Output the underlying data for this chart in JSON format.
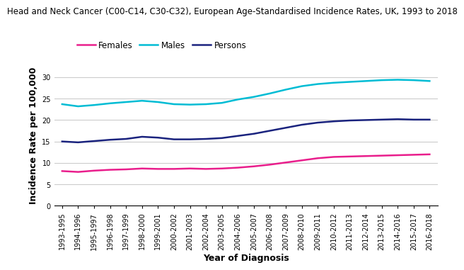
{
  "title": "Head and Neck Cancer (C00-C14, C30-C32), European Age-Standardised Incidence Rates, UK, 1993 to 2018",
  "xlabel": "Year of Diagnosis",
  "ylabel": "Incidence Rate per 100,000",
  "x_labels": [
    "1993-1995",
    "1994-1996",
    "1995-1997",
    "1996-1998",
    "1997-1999",
    "1998-2000",
    "1999-2001",
    "2000-2002",
    "2001-2003",
    "2002-2004",
    "2003-2005",
    "2004-2006",
    "2005-2007",
    "2006-2008",
    "2007-2009",
    "2008-2010",
    "2009-2011",
    "2010-2012",
    "2011-2013",
    "2012-2014",
    "2013-2015",
    "2014-2016",
    "2015-2017",
    "2016-2018"
  ],
  "females": [
    8.1,
    7.9,
    8.2,
    8.4,
    8.5,
    8.7,
    8.6,
    8.6,
    8.7,
    8.6,
    8.7,
    8.9,
    9.2,
    9.6,
    10.1,
    10.6,
    11.1,
    11.4,
    11.5,
    11.6,
    11.7,
    11.8,
    11.9,
    12.0
  ],
  "males": [
    23.7,
    23.2,
    23.5,
    23.9,
    24.2,
    24.5,
    24.2,
    23.7,
    23.6,
    23.7,
    24.0,
    24.8,
    25.4,
    26.2,
    27.1,
    27.9,
    28.4,
    28.7,
    28.9,
    29.1,
    29.3,
    29.4,
    29.3,
    29.1
  ],
  "persons": [
    15.0,
    14.8,
    15.1,
    15.4,
    15.6,
    16.1,
    15.9,
    15.5,
    15.5,
    15.6,
    15.8,
    16.3,
    16.8,
    17.5,
    18.2,
    18.9,
    19.4,
    19.7,
    19.9,
    20.0,
    20.1,
    20.2,
    20.1,
    20.1
  ],
  "color_females": "#e91e8c",
  "color_males": "#00bcd4",
  "color_persons": "#1a237e",
  "ylim_min": 0,
  "ylim_max": 33,
  "yticks": [
    0,
    5,
    10,
    15,
    20,
    25,
    30
  ],
  "background_color": "#ffffff",
  "grid_color": "#cccccc",
  "title_fontsize": 8.5,
  "axis_label_fontsize": 9,
  "tick_fontsize": 7,
  "legend_fontsize": 8.5,
  "line_width": 1.8
}
